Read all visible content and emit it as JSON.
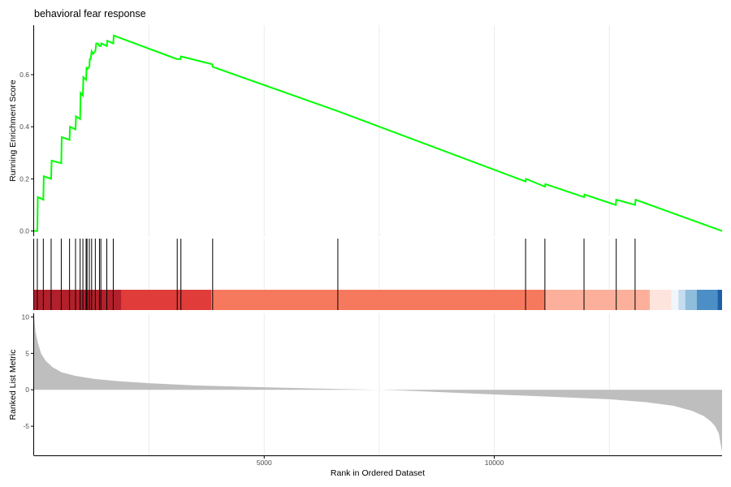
{
  "chart_data": {
    "type": "line",
    "title": "behavioral fear response",
    "xlabel": "Rank in Ordered Dataset",
    "x_range": [
      0,
      14950
    ],
    "x_ticks": [
      5000,
      10000
    ],
    "colors": {
      "enrichment_line": "#00ff00",
      "hit_line": "#000000",
      "metric_fill": "#bebebe",
      "axis": "#000000",
      "grid": "#ebebeb"
    },
    "enrichment_panel": {
      "ylabel": "Running Enrichment Score",
      "ylim": [
        -0.02,
        0.79
      ],
      "y_ticks": [
        "0.0",
        "0.2",
        "0.4",
        "0.6"
      ],
      "series": [
        {
          "x": [
            0,
            70,
            80,
            200,
            210,
            370,
            380,
            590,
            600,
            770,
            780,
            900,
            910,
            1000,
            1010,
            1060,
            1070,
            1130,
            1140,
            1150,
            1200,
            1210,
            1230,
            1250,
            1280,
            1330,
            1350,
            1380,
            1420,
            1450,
            1460,
            1580,
            1590,
            1720,
            1730,
            3100,
            3110,
            3180,
            3190,
            3870,
            3880,
            6600,
            10680,
            10690,
            11100,
            11110,
            11950,
            11960,
            12640,
            12650,
            13060,
            13070,
            14950
          ],
          "y": [
            0.0,
            0.0,
            0.13,
            0.12,
            0.21,
            0.2,
            0.27,
            0.26,
            0.36,
            0.35,
            0.4,
            0.39,
            0.44,
            0.43,
            0.53,
            0.52,
            0.59,
            0.58,
            0.63,
            0.62,
            0.63,
            0.66,
            0.66,
            0.69,
            0.68,
            0.69,
            0.72,
            0.72,
            0.71,
            0.71,
            0.72,
            0.71,
            0.73,
            0.72,
            0.75,
            0.66,
            0.66,
            0.66,
            0.67,
            0.64,
            0.63,
            0.46,
            0.19,
            0.2,
            0.17,
            0.18,
            0.13,
            0.14,
            0.1,
            0.12,
            0.1,
            0.12,
            0.0
          ]
        }
      ]
    },
    "gene_hits": [
      70,
      200,
      370,
      590,
      770,
      900,
      1000,
      1060,
      1130,
      1150,
      1200,
      1250,
      1330,
      1420,
      1450,
      1580,
      1720,
      3110,
      3190,
      3880,
      6600,
      10680,
      11100,
      11950,
      12650,
      13060
    ],
    "rank_color_bands": [
      {
        "from": 0,
        "to": 1900,
        "color": "#b2202b"
      },
      {
        "from": 1900,
        "to": 3850,
        "color": "#e03c3a"
      },
      {
        "from": 3850,
        "to": 11100,
        "color": "#f6795e"
      },
      {
        "from": 11100,
        "to": 13380,
        "color": "#fcb09b"
      },
      {
        "from": 13380,
        "to": 13850,
        "color": "#fde4dc"
      },
      {
        "from": 13850,
        "to": 14000,
        "color": "#f2f6fb"
      },
      {
        "from": 14000,
        "to": 14150,
        "color": "#c6dcef"
      },
      {
        "from": 14150,
        "to": 14400,
        "color": "#8fbddc"
      },
      {
        "from": 14400,
        "to": 14850,
        "color": "#4b8fc6"
      },
      {
        "from": 14850,
        "to": 14950,
        "color": "#1e5fa6"
      }
    ],
    "metric_panel": {
      "ylabel": "Ranked List Metric",
      "ylim": [
        -9,
        10.5
      ],
      "y_ticks": [
        "10",
        "5",
        "0",
        "-5"
      ],
      "series": [
        {
          "x": [
            0,
            30,
            80,
            150,
            250,
            400,
            600,
            900,
            1300,
            1800,
            2500,
            3500,
            5000,
            6500,
            7500,
            8000,
            9500,
            11000,
            12500,
            13300,
            13900,
            14300,
            14550,
            14700,
            14800,
            14880,
            14920,
            14950
          ],
          "y": [
            10.0,
            8.0,
            6.5,
            5.0,
            4.0,
            3.1,
            2.4,
            1.9,
            1.5,
            1.2,
            0.9,
            0.6,
            0.35,
            0.12,
            0.0,
            -0.1,
            -0.5,
            -0.9,
            -1.3,
            -1.7,
            -2.2,
            -2.9,
            -3.6,
            -4.3,
            -5.0,
            -6.0,
            -7.5,
            -8.5
          ]
        }
      ]
    }
  }
}
